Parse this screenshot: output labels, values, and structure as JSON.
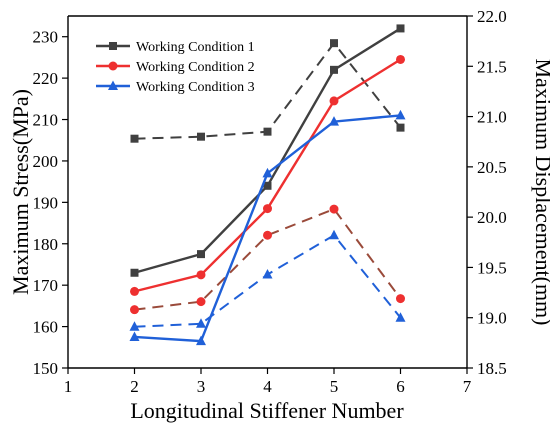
{
  "chart_data": {
    "type": "line",
    "xlabel": "Longitudinal Stiffener Number",
    "ylabel_left": "Maximum Stress(MPa)",
    "ylabel_right": "Maximum Displacement(mm)",
    "xlim": [
      1,
      7
    ],
    "xticks": [
      "1",
      "2",
      "3",
      "4",
      "5",
      "6",
      "7"
    ],
    "ylim_left": [
      150,
      235
    ],
    "yticks_left": [
      "150",
      "160",
      "170",
      "180",
      "190",
      "200",
      "210",
      "220",
      "230"
    ],
    "ylim_right": [
      18.5,
      22.0
    ],
    "yticks_right": [
      "18.5",
      "19.0",
      "19.5",
      "20.0",
      "20.5",
      "21.0",
      "21.5",
      "22.0"
    ],
    "legend_placement": "top-left",
    "x": [
      2,
      3,
      4,
      5,
      6
    ],
    "series": [
      {
        "name": "Working Condition 1",
        "color": "#404040",
        "marker": "square",
        "stress": [
          173,
          177.5,
          194,
          222,
          232
        ],
        "displacement": [
          20.78,
          20.8,
          20.85,
          21.73,
          20.89
        ]
      },
      {
        "name": "Working Condition 2",
        "color": "#ee3030",
        "marker": "circle",
        "stress": [
          168.5,
          172.5,
          188.5,
          214.5,
          224.5
        ],
        "displacement": [
          19.08,
          19.16,
          19.82,
          20.08,
          19.19
        ]
      },
      {
        "name": "Working Condition 3",
        "color": "#2060d8",
        "marker": "triangle",
        "stress": [
          157.5,
          156.5,
          197,
          209.5,
          211
        ],
        "displacement": [
          18.91,
          18.94,
          19.43,
          19.82,
          19.0
        ]
      }
    ],
    "dashed_colors": [
      "#404040",
      "#9a4a3a",
      "#2060d8"
    ]
  }
}
